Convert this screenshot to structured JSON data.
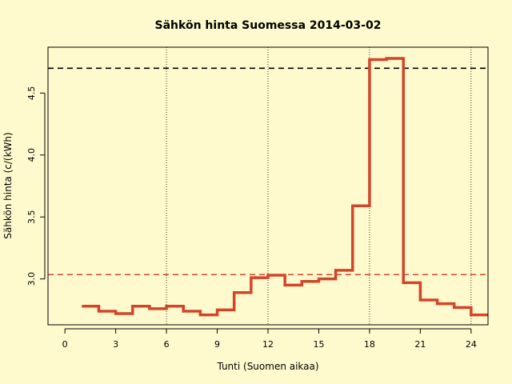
{
  "chart_data": {
    "type": "line",
    "step": true,
    "title": "Sähkön hinta Suomessa 2014-03-02",
    "xlabel": "Tunti (Suomen aikaa)",
    "ylabel": "Sähkön hinta (c/(kWh)",
    "xlim": [
      -1,
      25
    ],
    "ylim": [
      2.63,
      4.87
    ],
    "x_ticks": [
      0,
      3,
      6,
      9,
      12,
      15,
      18,
      21,
      24
    ],
    "y_ticks": [
      3.0,
      3.5,
      4.0,
      4.5
    ],
    "y_tick_labels": [
      "3.0",
      "3.5",
      "4.0",
      "4.5"
    ],
    "vertical_gridlines": [
      6,
      12,
      18,
      24
    ],
    "series": [
      {
        "color": "#D2452B",
        "x": [
          1,
          2,
          3,
          4,
          5,
          6,
          7,
          8,
          9,
          10,
          11,
          12,
          13,
          14,
          15,
          16,
          17,
          18,
          19,
          20,
          21,
          22,
          23,
          24,
          25
        ],
        "values": [
          2.78,
          2.74,
          2.72,
          2.78,
          2.76,
          2.78,
          2.74,
          2.71,
          2.75,
          2.89,
          3.01,
          3.03,
          2.95,
          2.98,
          3.0,
          3.07,
          3.59,
          4.77,
          4.78,
          2.97,
          2.83,
          2.8,
          2.77,
          2.71,
          2.71
        ]
      }
    ],
    "reference_lines": [
      {
        "value": 4.7,
        "color": "#000000",
        "style": "dashed"
      },
      {
        "value": 3.035,
        "color": "#D2452B",
        "style": "dashed"
      }
    ]
  }
}
